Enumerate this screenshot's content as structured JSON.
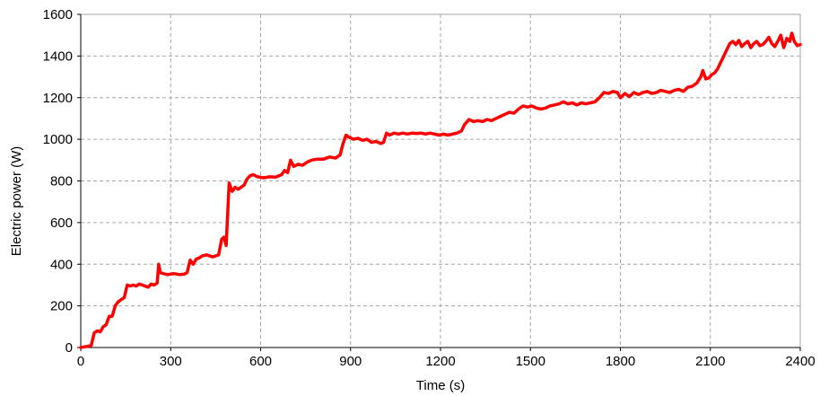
{
  "chart_data": {
    "type": "line",
    "title": "",
    "xlabel": "Time (s)",
    "ylabel": "Electric power (W)",
    "xlim": [
      0,
      2400
    ],
    "ylim": [
      0,
      1600
    ],
    "x_ticks": [
      0,
      300,
      600,
      900,
      1200,
      1500,
      1800,
      2100,
      2400
    ],
    "y_ticks": [
      0,
      200,
      400,
      600,
      800,
      1000,
      1200,
      1400,
      1600
    ],
    "grid": true,
    "legend": "none",
    "colors": {
      "line": "#ff0000",
      "grid": "#a6a6a6"
    },
    "series": [
      {
        "points": [
          [
            0,
            0
          ],
          [
            20,
            5
          ],
          [
            35,
            10
          ],
          [
            45,
            70
          ],
          [
            55,
            80
          ],
          [
            65,
            75
          ],
          [
            75,
            100
          ],
          [
            85,
            110
          ],
          [
            95,
            150
          ],
          [
            105,
            150
          ],
          [
            115,
            200
          ],
          [
            125,
            220
          ],
          [
            135,
            230
          ],
          [
            145,
            240
          ],
          [
            155,
            300
          ],
          [
            165,
            295
          ],
          [
            175,
            300
          ],
          [
            185,
            295
          ],
          [
            195,
            305
          ],
          [
            205,
            300
          ],
          [
            215,
            295
          ],
          [
            225,
            290
          ],
          [
            235,
            305
          ],
          [
            245,
            300
          ],
          [
            255,
            310
          ],
          [
            260,
            400
          ],
          [
            265,
            360
          ],
          [
            275,
            355
          ],
          [
            290,
            350
          ],
          [
            310,
            355
          ],
          [
            330,
            350
          ],
          [
            345,
            352
          ],
          [
            355,
            360
          ],
          [
            365,
            420
          ],
          [
            375,
            400
          ],
          [
            385,
            425
          ],
          [
            395,
            430
          ],
          [
            405,
            440
          ],
          [
            420,
            445
          ],
          [
            440,
            435
          ],
          [
            460,
            445
          ],
          [
            470,
            520
          ],
          [
            478,
            530
          ],
          [
            485,
            490
          ],
          [
            495,
            790
          ],
          [
            505,
            750
          ],
          [
            515,
            770
          ],
          [
            525,
            760
          ],
          [
            535,
            770
          ],
          [
            545,
            780
          ],
          [
            555,
            810
          ],
          [
            565,
            825
          ],
          [
            575,
            830
          ],
          [
            590,
            820
          ],
          [
            610,
            815
          ],
          [
            630,
            820
          ],
          [
            650,
            818
          ],
          [
            670,
            830
          ],
          [
            680,
            850
          ],
          [
            690,
            840
          ],
          [
            700,
            900
          ],
          [
            710,
            870
          ],
          [
            725,
            880
          ],
          [
            740,
            875
          ],
          [
            755,
            890
          ],
          [
            770,
            900
          ],
          [
            790,
            905
          ],
          [
            810,
            905
          ],
          [
            830,
            915
          ],
          [
            850,
            910
          ],
          [
            865,
            925
          ],
          [
            875,
            980
          ],
          [
            885,
            1020
          ],
          [
            895,
            1010
          ],
          [
            910,
            1000
          ],
          [
            925,
            1005
          ],
          [
            940,
            995
          ],
          [
            955,
            1000
          ],
          [
            970,
            985
          ],
          [
            985,
            990
          ],
          [
            1000,
            980
          ],
          [
            1010,
            985
          ],
          [
            1020,
            1030
          ],
          [
            1030,
            1020
          ],
          [
            1045,
            1030
          ],
          [
            1060,
            1025
          ],
          [
            1075,
            1030
          ],
          [
            1090,
            1025
          ],
          [
            1105,
            1030
          ],
          [
            1120,
            1028
          ],
          [
            1135,
            1030
          ],
          [
            1150,
            1025
          ],
          [
            1165,
            1030
          ],
          [
            1180,
            1025
          ],
          [
            1195,
            1020
          ],
          [
            1210,
            1025
          ],
          [
            1225,
            1020
          ],
          [
            1240,
            1025
          ],
          [
            1255,
            1030
          ],
          [
            1270,
            1040
          ],
          [
            1280,
            1070
          ],
          [
            1295,
            1095
          ],
          [
            1310,
            1085
          ],
          [
            1325,
            1090
          ],
          [
            1340,
            1085
          ],
          [
            1355,
            1095
          ],
          [
            1370,
            1090
          ],
          [
            1385,
            1100
          ],
          [
            1400,
            1110
          ],
          [
            1415,
            1120
          ],
          [
            1430,
            1130
          ],
          [
            1445,
            1125
          ],
          [
            1460,
            1145
          ],
          [
            1475,
            1160
          ],
          [
            1490,
            1155
          ],
          [
            1505,
            1160
          ],
          [
            1520,
            1150
          ],
          [
            1535,
            1145
          ],
          [
            1550,
            1150
          ],
          [
            1565,
            1160
          ],
          [
            1580,
            1165
          ],
          [
            1595,
            1170
          ],
          [
            1610,
            1180
          ],
          [
            1625,
            1170
          ],
          [
            1640,
            1175
          ],
          [
            1655,
            1165
          ],
          [
            1670,
            1175
          ],
          [
            1685,
            1170
          ],
          [
            1700,
            1175
          ],
          [
            1715,
            1180
          ],
          [
            1730,
            1200
          ],
          [
            1745,
            1225
          ],
          [
            1760,
            1220
          ],
          [
            1775,
            1230
          ],
          [
            1790,
            1225
          ],
          [
            1800,
            1200
          ],
          [
            1815,
            1220
          ],
          [
            1830,
            1205
          ],
          [
            1845,
            1225
          ],
          [
            1860,
            1215
          ],
          [
            1875,
            1225
          ],
          [
            1890,
            1230
          ],
          [
            1905,
            1220
          ],
          [
            1920,
            1225
          ],
          [
            1935,
            1235
          ],
          [
            1950,
            1230
          ],
          [
            1965,
            1225
          ],
          [
            1980,
            1235
          ],
          [
            1995,
            1240
          ],
          [
            2010,
            1230
          ],
          [
            2025,
            1250
          ],
          [
            2040,
            1255
          ],
          [
            2055,
            1270
          ],
          [
            2068,
            1300
          ],
          [
            2075,
            1330
          ],
          [
            2085,
            1290
          ],
          [
            2095,
            1295
          ],
          [
            2105,
            1310
          ],
          [
            2115,
            1320
          ],
          [
            2125,
            1340
          ],
          [
            2135,
            1370
          ],
          [
            2145,
            1400
          ],
          [
            2155,
            1430
          ],
          [
            2165,
            1460
          ],
          [
            2175,
            1470
          ],
          [
            2185,
            1455
          ],
          [
            2195,
            1475
          ],
          [
            2205,
            1445
          ],
          [
            2215,
            1460
          ],
          [
            2225,
            1470
          ],
          [
            2235,
            1440
          ],
          [
            2245,
            1460
          ],
          [
            2255,
            1470
          ],
          [
            2265,
            1450
          ],
          [
            2275,
            1455
          ],
          [
            2285,
            1470
          ],
          [
            2295,
            1490
          ],
          [
            2305,
            1460
          ],
          [
            2315,
            1445
          ],
          [
            2325,
            1470
          ],
          [
            2335,
            1500
          ],
          [
            2345,
            1440
          ],
          [
            2355,
            1485
          ],
          [
            2365,
            1470
          ],
          [
            2372,
            1510
          ],
          [
            2380,
            1470
          ],
          [
            2390,
            1450
          ],
          [
            2400,
            1455
          ]
        ]
      }
    ]
  }
}
